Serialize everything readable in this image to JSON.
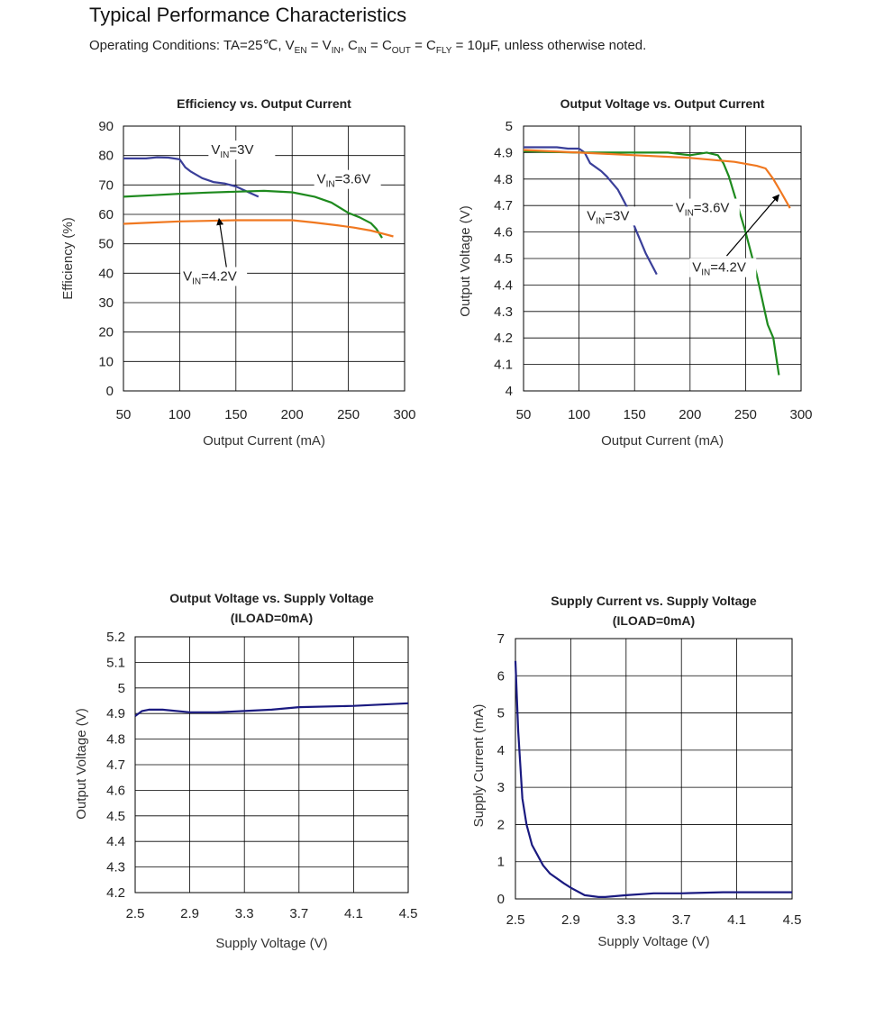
{
  "header": {
    "title": "Typical Performance Characteristics",
    "conditions": {
      "p1": "Operating Conditions: TA=25℃, V",
      "s1": "EN",
      "p2": " = V",
      "s2": "IN",
      "p3": ", C",
      "s3": "IN",
      "p4": " = C",
      "s4": "OUT",
      "p5": " = C",
      "s5": "FLY",
      "p6": " = 10μF, unless otherwise noted."
    }
  },
  "colors": {
    "vin3": "#3a3f99",
    "vin36": "#1e8a1e",
    "vin42": "#f07820",
    "supply": "#1a1a80",
    "grid": "#000000"
  },
  "chart_data": [
    {
      "type": "line",
      "title": "Efficiency  vs. Output Current",
      "xlabel": "Output Current (mA)",
      "ylabel": "Efficiency (%)",
      "xlim": [
        50,
        300
      ],
      "ylim": [
        0,
        90
      ],
      "xticks": [
        50,
        100,
        150,
        200,
        250,
        300
      ],
      "yticks": [
        0,
        10,
        20,
        30,
        40,
        50,
        60,
        70,
        80,
        90
      ],
      "grid": true,
      "series": [
        {
          "name": "VIN=3V",
          "color": "#3a3f99",
          "x": [
            50,
            70,
            80,
            90,
            100,
            105,
            110,
            120,
            130,
            140,
            150,
            160,
            170
          ],
          "y": [
            79,
            79,
            79.4,
            79.3,
            78.7,
            76,
            74.5,
            72.3,
            71,
            70.5,
            69.5,
            67.7,
            66
          ]
        },
        {
          "name": "VIN=3.6V",
          "color": "#1e8a1e",
          "x": [
            50,
            75,
            100,
            125,
            150,
            175,
            200,
            220,
            235,
            250,
            260,
            270,
            275,
            280
          ],
          "y": [
            66,
            66.5,
            67,
            67.4,
            67.7,
            68,
            67.5,
            66,
            64,
            60.5,
            59,
            57,
            55,
            52
          ]
        },
        {
          "name": "VIN=4.2V",
          "color": "#f07820",
          "x": [
            50,
            75,
            100,
            125,
            150,
            175,
            200,
            220,
            240,
            255,
            270,
            280,
            290
          ],
          "y": [
            56.8,
            57.2,
            57.6,
            57.8,
            58,
            58,
            58,
            57.2,
            56.3,
            55.5,
            54.5,
            53.5,
            52.5
          ]
        }
      ],
      "annotations": [
        {
          "text": "V",
          "sub": "IN",
          "tail": "=3V",
          "x": 128,
          "y": 80.5
        },
        {
          "text": "V",
          "sub": "IN",
          "tail": "=3.6V",
          "x": 222,
          "y": 70.5
        },
        {
          "text": "V",
          "sub": "IN",
          "tail": "=4.2V",
          "x": 103,
          "y": 37.5,
          "arrow": {
            "from": [
              142,
              41
            ],
            "to": [
              135,
              58.5
            ]
          }
        }
      ]
    },
    {
      "type": "line",
      "title": "Output Voltage  vs. Output Current",
      "xlabel": "Output Current (mA)",
      "ylabel": "Output Voltage  (V)",
      "xlim": [
        50,
        300
      ],
      "ylim": [
        4,
        5
      ],
      "xticks": [
        50,
        100,
        150,
        200,
        250,
        300
      ],
      "yticks": [
        4,
        4.1,
        4.2,
        4.3,
        4.4,
        4.5,
        4.6,
        4.7,
        4.8,
        4.9,
        5
      ],
      "grid": true,
      "series": [
        {
          "name": "VIN=3V",
          "color": "#3a3f99",
          "x": [
            50,
            80,
            90,
            100,
            105,
            110,
            120,
            125,
            135,
            140,
            145,
            150,
            160,
            170
          ],
          "y": [
            4.92,
            4.92,
            4.915,
            4.915,
            4.9,
            4.86,
            4.83,
            4.81,
            4.76,
            4.72,
            4.68,
            4.62,
            4.52,
            4.44
          ]
        },
        {
          "name": "VIN=3.6V",
          "color": "#1e8a1e",
          "x": [
            50,
            100,
            150,
            180,
            200,
            215,
            225,
            230,
            235,
            240,
            250,
            260,
            270,
            275,
            280
          ],
          "y": [
            4.905,
            4.9,
            4.9,
            4.9,
            4.89,
            4.9,
            4.89,
            4.86,
            4.81,
            4.74,
            4.6,
            4.44,
            4.25,
            4.2,
            4.06
          ]
        },
        {
          "name": "VIN=4.2V",
          "color": "#f07820",
          "x": [
            50,
            100,
            150,
            200,
            240,
            260,
            268,
            275,
            282,
            290
          ],
          "y": [
            4.91,
            4.9,
            4.89,
            4.88,
            4.865,
            4.85,
            4.84,
            4.8,
            4.75,
            4.69
          ]
        }
      ],
      "annotations": [
        {
          "text": "V",
          "sub": "IN",
          "tail": "=3V",
          "x": 107,
          "y": 4.645
        },
        {
          "text": "V",
          "sub": "IN",
          "tail": "=3.6V",
          "x": 187,
          "y": 4.675
        },
        {
          "text": "V",
          "sub": "IN",
          "tail": "=4.2V",
          "x": 202,
          "y": 4.45,
          "arrow": {
            "from": [
              233,
              4.51
            ],
            "to": [
              280,
              4.74
            ]
          }
        }
      ]
    },
    {
      "type": "line",
      "title": "Output Voltage vs. Supply Voltage",
      "subtitle": "(ILOAD=0mA)",
      "xlabel": "Supply Voltage (V)",
      "ylabel": "Output Voltage (V)",
      "xlim": [
        2.5,
        4.5
      ],
      "ylim": [
        4.2,
        5.2
      ],
      "xticks": [
        2.5,
        2.9,
        3.3,
        3.7,
        4.1,
        4.5
      ],
      "xtick_labels": [
        "2.5",
        "2.9",
        "3.3",
        "3.7",
        "4.1",
        "4.5"
      ],
      "yticks": [
        4.2,
        4.3,
        4.4,
        4.5,
        4.6,
        4.7,
        4.8,
        4.9,
        5,
        5.1,
        5.2
      ],
      "grid": true,
      "series": [
        {
          "color": "#1a1a80",
          "x": [
            2.5,
            2.55,
            2.6,
            2.7,
            2.9,
            3.1,
            3.3,
            3.5,
            3.7,
            4.1,
            4.5
          ],
          "y": [
            4.89,
            4.91,
            4.915,
            4.915,
            4.905,
            4.905,
            4.91,
            4.915,
            4.925,
            4.93,
            4.94
          ]
        }
      ]
    },
    {
      "type": "line",
      "title": "Supply Current vs. Supply Voltage",
      "subtitle": "(ILOAD=0mA)",
      "xlabel": "Supply Voltage (V)",
      "ylabel": "Supply Current (mA)",
      "xlim": [
        2.5,
        4.5
      ],
      "ylim": [
        0,
        7
      ],
      "xticks": [
        2.5,
        2.9,
        3.3,
        3.7,
        4.1,
        4.5
      ],
      "xtick_labels": [
        "2.5",
        "2.9",
        "3.3",
        "3.7",
        "4.1",
        "4.5"
      ],
      "yticks": [
        0,
        1,
        2,
        3,
        4,
        5,
        6,
        7
      ],
      "grid": true,
      "series": [
        {
          "color": "#1a1a80",
          "x": [
            2.5,
            2.52,
            2.55,
            2.58,
            2.62,
            2.7,
            2.75,
            2.85,
            2.9,
            3.0,
            3.1,
            3.15,
            3.3,
            3.5,
            3.7,
            4.0,
            4.5
          ],
          "y": [
            6.4,
            4.5,
            2.7,
            2.0,
            1.45,
            0.9,
            0.68,
            0.42,
            0.3,
            0.1,
            0.05,
            0.05,
            0.1,
            0.15,
            0.15,
            0.18,
            0.18
          ]
        }
      ]
    }
  ]
}
